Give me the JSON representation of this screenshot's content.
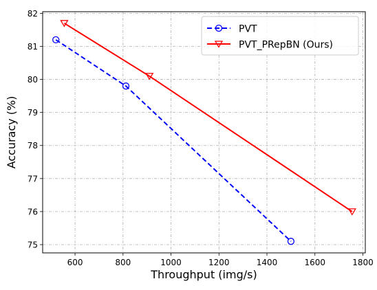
{
  "chart_data": {
    "type": "line",
    "title": "",
    "xlabel": "Throughput (img/s)",
    "ylabel": "Accuracy (%)",
    "xlim": [
      465,
      1810
    ],
    "ylim": [
      74.75,
      82.05
    ],
    "xticks": [
      600,
      800,
      1000,
      1200,
      1400,
      1600,
      1800
    ],
    "yticks": [
      75,
      76,
      77,
      78,
      79,
      80,
      81,
      82
    ],
    "grid": true,
    "legend_position": "top-right",
    "series": [
      {
        "name": "PVT",
        "color": "#0000ff",
        "line_style": "dashed",
        "marker": "circle",
        "x": [
          520,
          812,
          1500
        ],
        "y": [
          81.2,
          79.8,
          75.1
        ]
      },
      {
        "name": "PVT_PRepBN (Ours)",
        "color": "#ff0000",
        "line_style": "solid",
        "marker": "triangle-down",
        "x": [
          555,
          910,
          1755
        ],
        "y": [
          81.7,
          80.1,
          76.0
        ]
      }
    ]
  }
}
